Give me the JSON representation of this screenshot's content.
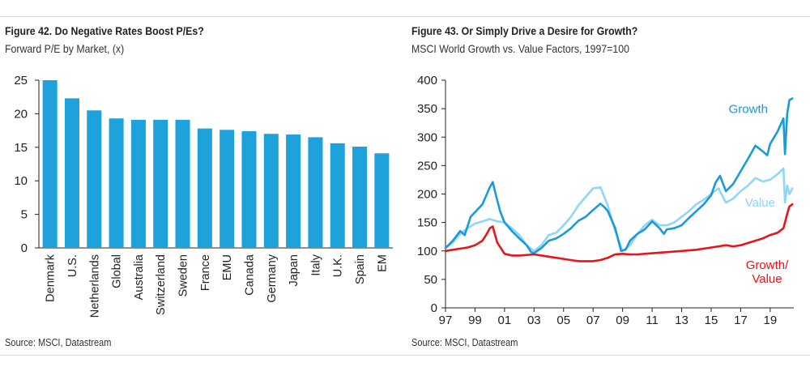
{
  "colors": {
    "bar": "#1ea2dc",
    "growth": "#1a9ad6",
    "value": "#8fd6f7",
    "ratio": "#e8141b",
    "axis": "#222222",
    "text": "#222222"
  },
  "left_panel": {
    "title": "Figure 42. Do Negative Rates Boost P/Es?",
    "subtitle": "Forward P/E by Market, (x)",
    "source": "Source: MSCI, Datastream"
  },
  "right_panel": {
    "title": "Figure 43. Or Simply Drive a Desire for Growth?",
    "subtitle": "MSCI World Growth vs. Value Factors, 1997=100",
    "source": "Source: MSCI, Datastream"
  },
  "chart_data": [
    {
      "type": "bar",
      "title": "Figure 42. Do Negative Rates Boost P/Es?",
      "subtitle": "Forward P/E by Market, (x)",
      "xlabel": "",
      "ylabel": "",
      "ylim": [
        0,
        25
      ],
      "yticks": [
        0,
        5,
        10,
        15,
        20,
        25
      ],
      "grid": false,
      "categories": [
        "Denmark",
        "U.S.",
        "Netherlands",
        "Global",
        "Australia",
        "Switzerland",
        "Sweden",
        "France",
        "EMU",
        "Canada",
        "Germany",
        "Japan",
        "Italy",
        "U.K.",
        "Spain",
        "EM"
      ],
      "values": [
        25.0,
        22.3,
        20.5,
        19.3,
        19.1,
        19.1,
        19.1,
        17.8,
        17.6,
        17.4,
        17.0,
        16.9,
        16.5,
        15.6,
        15.1,
        14.1
      ]
    },
    {
      "type": "line",
      "title": "Figure 43. Or Simply Drive a Desire for Growth?",
      "subtitle": "MSCI World Growth vs. Value Factors, 1997=100",
      "xlabel": "",
      "ylabel": "",
      "xlim": [
        1997,
        2020.6
      ],
      "ylim": [
        0,
        400
      ],
      "xtick_labels": [
        "97",
        "99",
        "01",
        "03",
        "05",
        "07",
        "09",
        "11",
        "13",
        "15",
        "17",
        "19"
      ],
      "yticks": [
        0,
        50,
        100,
        150,
        200,
        250,
        300,
        350,
        400
      ],
      "grid": false,
      "annotations": [
        "Growth",
        "Value",
        "Growth/",
        "Value"
      ],
      "series": [
        {
          "name": "Growth",
          "x": [
            1997.0,
            1997.5,
            1998.0,
            1998.3,
            1998.7,
            1999.0,
            1999.5,
            2000.0,
            2000.2,
            2000.4,
            2000.7,
            2001.0,
            2001.5,
            2002.0,
            2002.5,
            2002.8,
            2003.0,
            2003.5,
            2004.0,
            2004.5,
            2005.0,
            2005.5,
            2006.0,
            2006.5,
            2007.0,
            2007.5,
            2007.8,
            2008.0,
            2008.5,
            2008.9,
            2009.2,
            2009.5,
            2010.0,
            2010.5,
            2011.0,
            2011.5,
            2011.8,
            2012.0,
            2012.5,
            2013.0,
            2013.5,
            2014.0,
            2014.5,
            2015.0,
            2015.3,
            2015.6,
            2016.0,
            2016.5,
            2017.0,
            2017.5,
            2018.0,
            2018.5,
            2018.8,
            2019.0,
            2019.5,
            2019.9,
            2020.0,
            2020.15,
            2020.3,
            2020.5
          ],
          "values": [
            105,
            118,
            135,
            128,
            160,
            168,
            182,
            212,
            221,
            200,
            170,
            150,
            135,
            122,
            110,
            98,
            96,
            105,
            118,
            122,
            130,
            140,
            153,
            160,
            172,
            183,
            176,
            170,
            140,
            100,
            102,
            118,
            130,
            138,
            152,
            140,
            130,
            138,
            140,
            145,
            158,
            170,
            182,
            198,
            220,
            232,
            205,
            218,
            240,
            262,
            285,
            275,
            268,
            288,
            310,
            333,
            270,
            340,
            365,
            368
          ]
        },
        {
          "name": "Value",
          "x": [
            1997.0,
            1997.5,
            1998.0,
            1998.5,
            1999.0,
            1999.5,
            2000.0,
            2000.5,
            2001.0,
            2001.5,
            2002.0,
            2002.5,
            2003.0,
            2003.5,
            2004.0,
            2004.5,
            2005.0,
            2005.5,
            2006.0,
            2006.5,
            2007.0,
            2007.5,
            2008.0,
            2008.5,
            2009.0,
            2009.5,
            2010.0,
            2010.5,
            2011.0,
            2011.5,
            2012.0,
            2012.5,
            2013.0,
            2013.5,
            2014.0,
            2014.5,
            2015.0,
            2015.5,
            2016.0,
            2016.5,
            2017.0,
            2017.5,
            2018.0,
            2018.5,
            2019.0,
            2019.5,
            2019.9,
            2020.0,
            2020.15,
            2020.3,
            2020.5
          ],
          "values": [
            105,
            115,
            130,
            140,
            148,
            152,
            156,
            152,
            150,
            140,
            128,
            110,
            100,
            110,
            128,
            132,
            145,
            160,
            180,
            195,
            210,
            212,
            180,
            135,
            100,
            110,
            130,
            145,
            155,
            145,
            145,
            150,
            160,
            170,
            182,
            190,
            200,
            210,
            185,
            192,
            205,
            215,
            228,
            222,
            225,
            235,
            245,
            185,
            215,
            200,
            210
          ]
        },
        {
          "name": "Growth/Value",
          "x": [
            1997.0,
            1997.5,
            1998.0,
            1998.5,
            1999.0,
            1999.5,
            1999.8,
            2000.0,
            2000.2,
            2000.5,
            2001.0,
            2001.5,
            2002.0,
            2003.0,
            2004.0,
            2005.0,
            2006.0,
            2007.0,
            2007.5,
            2008.0,
            2008.5,
            2009.0,
            2009.5,
            2010.0,
            2011.0,
            2012.0,
            2013.0,
            2014.0,
            2015.0,
            2016.0,
            2016.5,
            2017.0,
            2017.5,
            2018.0,
            2018.5,
            2019.0,
            2019.5,
            2019.9,
            2020.0,
            2020.15,
            2020.3,
            2020.5
          ],
          "values": [
            100,
            102,
            104,
            106,
            110,
            118,
            130,
            140,
            143,
            115,
            95,
            92,
            92,
            94,
            90,
            86,
            82,
            82,
            84,
            88,
            94,
            95,
            94,
            94,
            96,
            98,
            100,
            102,
            106,
            110,
            108,
            110,
            114,
            118,
            122,
            128,
            132,
            140,
            150,
            165,
            178,
            182
          ]
        }
      ]
    }
  ]
}
